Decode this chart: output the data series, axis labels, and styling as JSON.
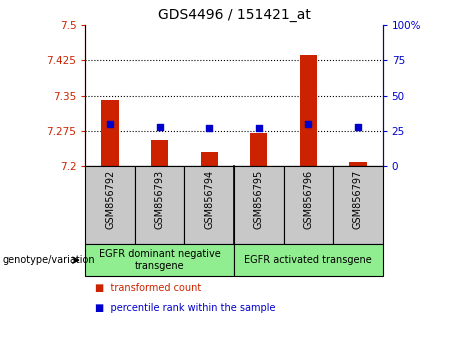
{
  "title": "GDS4496 / 151421_at",
  "samples": [
    "GSM856792",
    "GSM856793",
    "GSM856794",
    "GSM856795",
    "GSM856796",
    "GSM856797"
  ],
  "red_values": [
    7.34,
    7.255,
    7.23,
    7.27,
    7.435,
    7.21
  ],
  "blue_values_pct": [
    30,
    28,
    27,
    27,
    30,
    28
  ],
  "ymin": 7.2,
  "ymax": 7.5,
  "yticks": [
    7.2,
    7.275,
    7.35,
    7.425,
    7.5
  ],
  "ytick_labels": [
    "7.2",
    "7.275",
    "7.35",
    "7.425",
    "7.5"
  ],
  "y2min": 0,
  "y2max": 100,
  "y2ticks": [
    0,
    25,
    50,
    75,
    100
  ],
  "y2tick_labels": [
    "0",
    "25",
    "50",
    "75",
    "100%"
  ],
  "groups": [
    {
      "label": "EGFR dominant negative\ntransgene",
      "indices": [
        0,
        1,
        2
      ]
    },
    {
      "label": "EGFR activated transgene",
      "indices": [
        3,
        4,
        5
      ]
    }
  ],
  "group_color": "#90EE90",
  "sample_bg_color": "#C8C8C8",
  "bar_color": "#CC2200",
  "dot_color": "#0000CC",
  "baseline": 7.2,
  "legend_red": "transformed count",
  "legend_blue": "percentile rank within the sample",
  "genotype_label": "genotype/variation",
  "bar_width": 0.35,
  "bg_color": "#FFFFFF",
  "grid_color": "#000000",
  "left_label_color": "#CC2200",
  "right_label_color": "#0000CC"
}
